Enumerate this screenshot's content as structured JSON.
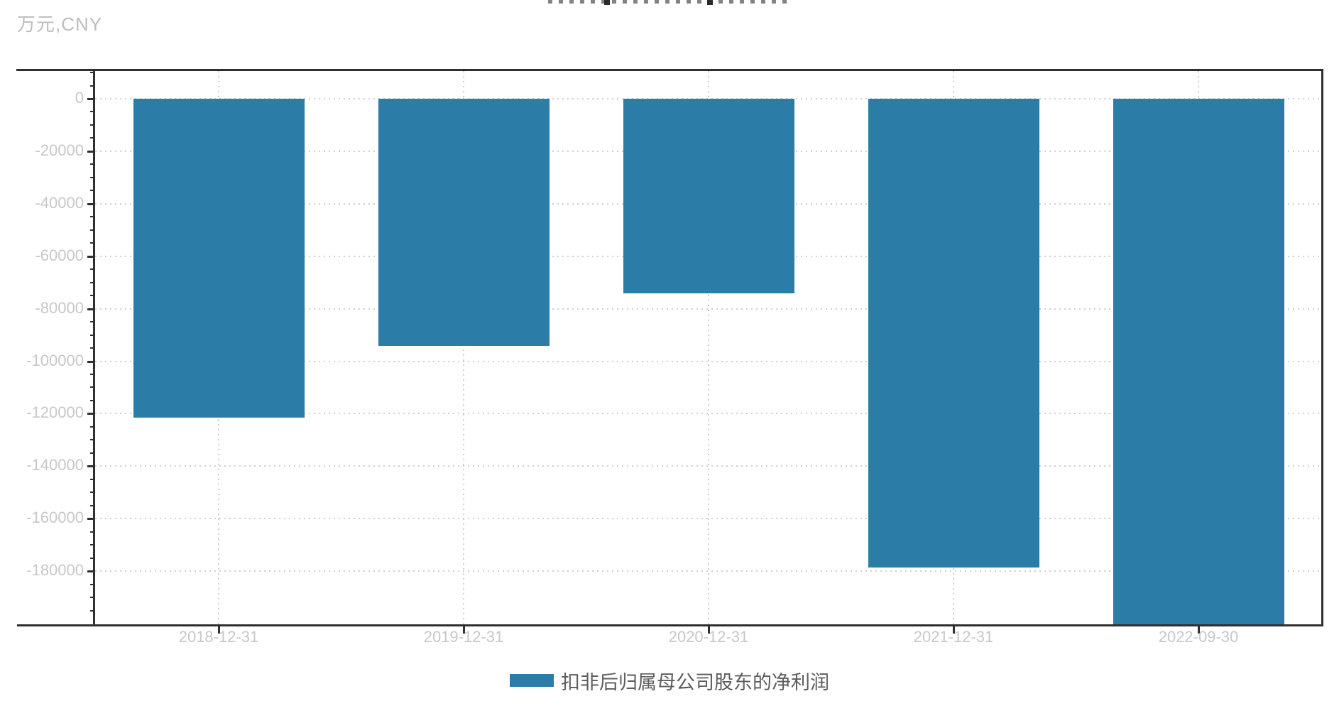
{
  "header": {
    "unit_label": "万元,CNY",
    "title_clipped_at_top": true
  },
  "chart_data": {
    "type": "bar",
    "title": "",
    "xlabel": "",
    "ylabel": "万元,CNY",
    "categories": [
      "2018-12-31",
      "2019-12-31",
      "2020-12-31",
      "2021-12-31",
      "2022-09-30"
    ],
    "series": [
      {
        "name": "扣非后归属母公司股东的净利润",
        "color": "#2b7ca6",
        "values": [
          -121500,
          -94200,
          -74200,
          -178600,
          -200300
        ]
      }
    ],
    "clipped_bars": [
      "2022-09-30"
    ],
    "y_axis": {
      "ticks": [
        0,
        -20000,
        -40000,
        -60000,
        -80000,
        -100000,
        -120000,
        -140000,
        -160000,
        -180000
      ],
      "tick_labels": [
        "0",
        "-20000",
        "-40000",
        "-60000",
        "-80000",
        "-100000",
        "-120000",
        "-140000",
        "-160000",
        "-180000"
      ],
      "minor_tick_step": 5000,
      "ylim": [
        -200300,
        11400
      ]
    },
    "grid": true,
    "legend_position": "bottom"
  },
  "legend": {
    "items": [
      {
        "label": "扣非后归属母公司股东的净利润",
        "color": "#2b7ca6"
      }
    ]
  }
}
